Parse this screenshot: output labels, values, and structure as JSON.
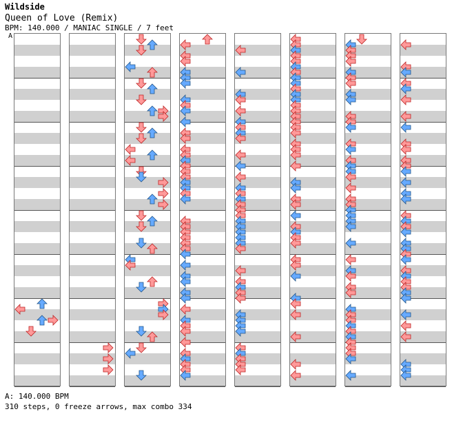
{
  "song": {
    "artist": "Wildside",
    "title": "Queen of Love (Remix)",
    "info": "BPM: 140.000 / MANIAC SINGLE / 7 feet",
    "marker": "A"
  },
  "footer": {
    "bpm_line": "A: 140.000 BPM",
    "stats_line": "310 steps, 0 freeze arrows, max combo 334"
  },
  "colors": {
    "red": "#ff9999",
    "blue": "#66aaff",
    "pink": "#ffaaff",
    "grid_light": "#ffffff",
    "grid_dark": "#d0d0d0"
  },
  "columns": [
    {
      "notes": [
        [
          "L",
          448,
          "r"
        ],
        [
          "U",
          440,
          "b"
        ],
        [
          "R",
          464,
          "r"
        ],
        [
          "U",
          464,
          "b"
        ],
        [
          "D",
          480,
          "r"
        ]
      ]
    },
    {
      "notes": [
        [
          "R",
          504,
          "r"
        ],
        [
          "R",
          520,
          "r"
        ],
        [
          "R",
          536,
          "r"
        ],
        [
          "R",
          552,
          "r"
        ]
      ]
    },
    {
      "notes": [
        [
          "D",
          56,
          "r"
        ],
        [
          "U",
          64,
          "b"
        ],
        [
          "D",
          72,
          "r"
        ],
        [
          "L",
          96,
          "b"
        ],
        [
          "U",
          104,
          "r"
        ],
        [
          "D",
          120,
          "r"
        ],
        [
          "U",
          128,
          "b"
        ],
        [
          "D",
          144,
          "r"
        ],
        [
          "U",
          160,
          "b"
        ],
        [
          "R",
          160,
          "r"
        ],
        [
          "R",
          168,
          "r"
        ],
        [
          "D",
          184,
          "r"
        ],
        [
          "U",
          192,
          "b"
        ],
        [
          "D",
          200,
          "r"
        ],
        [
          "L",
          216,
          "r"
        ],
        [
          "U",
          224,
          "b"
        ],
        [
          "L",
          232,
          "r"
        ],
        [
          "D",
          248,
          "r"
        ],
        [
          "D",
          256,
          "b"
        ],
        [
          "R",
          264,
          "r"
        ],
        [
          "U",
          288,
          "b"
        ],
        [
          "R",
          280,
          "r"
        ],
        [
          "R",
          296,
          "r"
        ],
        [
          "D",
          312,
          "r"
        ],
        [
          "U",
          320,
          "b"
        ],
        [
          "D",
          328,
          "r"
        ],
        [
          "D",
          352,
          "b"
        ],
        [
          "U",
          360,
          "r"
        ],
        [
          "L",
          376,
          "b"
        ],
        [
          "L",
          384,
          "r"
        ],
        [
          "D",
          416,
          "b"
        ],
        [
          "U",
          408,
          "r"
        ],
        [
          "R",
          440,
          "r"
        ],
        [
          "R",
          448,
          "b"
        ],
        [
          "R",
          456,
          "r"
        ],
        [
          "D",
          480,
          "b"
        ],
        [
          "U",
          488,
          "r"
        ],
        [
          "D",
          504,
          "r"
        ],
        [
          "L",
          512,
          "b"
        ],
        [
          "D",
          544,
          "b"
        ],
        [
          "U",
          552,
          "r"
        ]
      ]
    }
  ]
}
